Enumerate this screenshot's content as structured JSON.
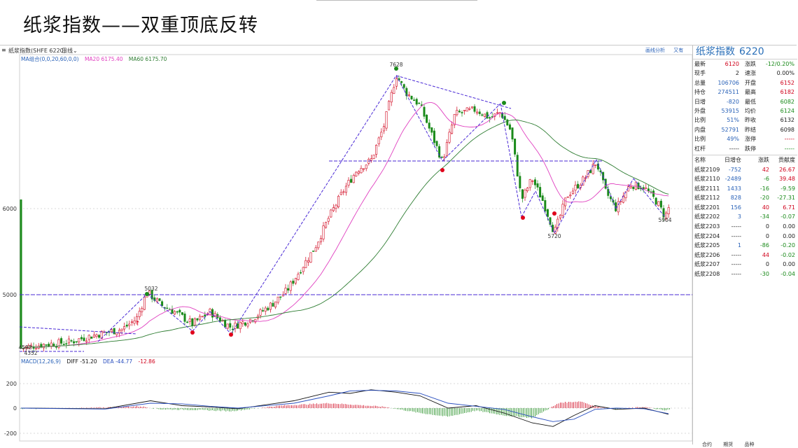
{
  "slide": {
    "title": "纸浆指数——双重顶底反转"
  },
  "header": {
    "name": "纸浆指数(SHFE 6220)",
    "period": "日线"
  },
  "tools": [
    "画线分析",
    "又有"
  ],
  "ma_legend": {
    "label": "MA组合(0,0,20,60,0,0)",
    "ma20": "MA20 6175.40",
    "ma60": "MA60 6175.70"
  },
  "macd_legend": {
    "label": "MACD(12,26,9)",
    "diff": "DIFF -51.20",
    "dea": "DEA -44.77",
    "macd": "-12.86"
  },
  "price_axis": [
    "6000",
    "5000"
  ],
  "macd_axis": [
    "200",
    "0",
    "-200"
  ],
  "annotations": {
    "top_high": "7628",
    "left_high": "5032",
    "low_bottom": "5720",
    "recent_low": "5904",
    "start_low": "4352",
    "start_high": "4592"
  },
  "colors": {
    "candle_up": "#d0021b",
    "candle_down": "#1a8a1a",
    "ma20": "#e040c0",
    "ma60": "#2e7d32",
    "trendline": "#4a2ad6",
    "diff": "#111111",
    "dea": "#2a4fbf",
    "background": "#ffffff"
  },
  "panel": {
    "title": "纸浆指数",
    "code": "6220",
    "quotes": [
      {
        "l1": "最新",
        "v1": "6120",
        "c1": "red",
        "l2": "涨跌",
        "v2": "-12/0.20%",
        "c2": "green"
      },
      {
        "l1": "现手",
        "v1": "2",
        "c1": "dark",
        "l2": "速涨",
        "v2": "0.00%",
        "c2": "dark"
      },
      {
        "l1": "总量",
        "v1": "106706",
        "c1": "blue",
        "l2": "开盘",
        "v2": "6152",
        "c2": "red"
      },
      {
        "l1": "持仓",
        "v1": "274511",
        "c1": "blue",
        "l2": "最高",
        "v2": "6182",
        "c2": "red"
      },
      {
        "l1": "日增",
        "v1": "-820",
        "c1": "blue",
        "l2": "最低",
        "v2": "6082",
        "c2": "green"
      },
      {
        "l1": "外盘",
        "v1": "53915",
        "c1": "blue",
        "l2": "均价",
        "v2": "6124",
        "c2": "green"
      },
      {
        "l1": "比例",
        "v1": "51%",
        "c1": "blue",
        "l2": "昨收",
        "v2": "6132",
        "c2": "dark"
      },
      {
        "l1": "内盘",
        "v1": "52791",
        "c1": "blue",
        "l2": "昨结",
        "v2": "6098",
        "c2": "dark"
      },
      {
        "l1": "比例",
        "v1": "49%",
        "c1": "blue",
        "l2": "涨停",
        "v2": "-----",
        "c2": "red"
      },
      {
        "l1": "杠杆",
        "v1": "-----",
        "c1": "dark",
        "l2": "跌停",
        "v2": "-----",
        "c2": "green"
      }
    ],
    "contract_header": [
      "名称",
      "日增仓",
      "涨跌",
      "贡献度"
    ],
    "contracts": [
      {
        "name": "纸浆2109",
        "a": "-752",
        "ac": "blue",
        "b": "42",
        "bc": "red",
        "c": "26.67",
        "cc": "red"
      },
      {
        "name": "纸浆2110",
        "a": "-2489",
        "ac": "blue",
        "b": "-6",
        "bc": "green",
        "c": "39.48",
        "cc": "red"
      },
      {
        "name": "纸浆2111",
        "a": "1433",
        "ac": "blue",
        "b": "-16",
        "bc": "green",
        "c": "-9.59",
        "cc": "green"
      },
      {
        "name": "纸浆2112",
        "a": "828",
        "ac": "blue",
        "b": "-20",
        "bc": "green",
        "c": "-27.31",
        "cc": "green"
      },
      {
        "name": "纸浆2201",
        "a": "156",
        "ac": "blue",
        "b": "40",
        "bc": "red",
        "c": "6.71",
        "cc": "red"
      },
      {
        "name": "纸浆2202",
        "a": "3",
        "ac": "blue",
        "b": "-34",
        "bc": "green",
        "c": "-0.07",
        "cc": "green"
      },
      {
        "name": "纸浆2203",
        "a": "-----",
        "ac": "dark",
        "b": "0",
        "bc": "dark",
        "c": "0.00",
        "cc": "dark"
      },
      {
        "name": "纸浆2204",
        "a": "-----",
        "ac": "dark",
        "b": "0",
        "bc": "dark",
        "c": "0.00",
        "cc": "dark"
      },
      {
        "name": "纸浆2205",
        "a": "1",
        "ac": "blue",
        "b": "-86",
        "bc": "green",
        "c": "-0.20",
        "cc": "green"
      },
      {
        "name": "纸浆2206",
        "a": "-----",
        "ac": "dark",
        "b": "44",
        "bc": "red",
        "c": "-0.02",
        "cc": "green"
      },
      {
        "name": "纸浆2207",
        "a": "-----",
        "ac": "dark",
        "b": "0",
        "bc": "dark",
        "c": "0.00",
        "cc": "dark"
      },
      {
        "name": "纸浆2208",
        "a": "-----",
        "ac": "dark",
        "b": "-30",
        "bc": "green",
        "c": "-0.04",
        "cc": "green"
      }
    ]
  },
  "bottom_tabs": [
    "合约",
    "期货",
    "品种"
  ]
}
